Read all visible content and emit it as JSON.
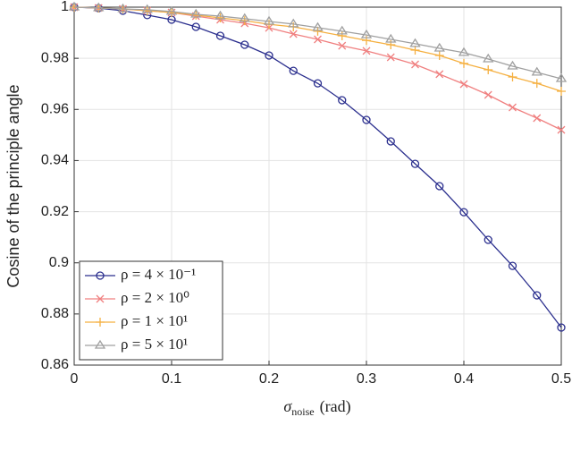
{
  "chart_data": {
    "type": "line",
    "x_label": {
      "symbol": "σ",
      "subscript": "noise",
      "unit": "(rad)"
    },
    "y_label": "Cosine of the principle angle",
    "x": [
      0,
      0.025,
      0.05,
      0.075,
      0.1,
      0.125,
      0.15,
      0.175,
      0.2,
      0.225,
      0.25,
      0.275,
      0.3,
      0.325,
      0.35,
      0.375,
      0.4,
      0.425,
      0.45,
      0.475,
      0.5
    ],
    "series": [
      {
        "name": "ρ = 4 × 10⁻¹",
        "color": "#2b2f8e",
        "marker": "circle",
        "values": [
          1,
          0.9996,
          0.9986,
          0.9969,
          0.9951,
          0.9923,
          0.9888,
          0.9853,
          0.9811,
          0.9751,
          0.9702,
          0.9636,
          0.9559,
          0.9475,
          0.9387,
          0.93,
          0.9198,
          0.909,
          0.8988,
          0.8873,
          0.8747
        ]
      },
      {
        "name": "ρ = 2 × 10⁰",
        "color": "#f08080",
        "marker": "x",
        "values": [
          1,
          0.9997,
          0.9993,
          0.9986,
          0.9979,
          0.9965,
          0.9951,
          0.9937,
          0.9919,
          0.9895,
          0.9874,
          0.9849,
          0.9829,
          0.9804,
          0.9776,
          0.9738,
          0.9699,
          0.9657,
          0.9608,
          0.9566,
          0.952
        ]
      },
      {
        "name": "ρ = 1 × 10¹",
        "color": "#f5b041",
        "marker": "plus",
        "values": [
          1,
          0.9997,
          0.9993,
          0.9986,
          0.9979,
          0.9969,
          0.9958,
          0.9947,
          0.9933,
          0.9923,
          0.9906,
          0.9888,
          0.987,
          0.9853,
          0.9832,
          0.9811,
          0.978,
          0.9755,
          0.9727,
          0.9702,
          0.9671
        ]
      },
      {
        "name": "ρ = 5 × 10¹",
        "color": "#a0a0a0",
        "marker": "triangle",
        "values": [
          1,
          0.9997,
          0.9993,
          0.999,
          0.9983,
          0.9972,
          0.9965,
          0.9955,
          0.9944,
          0.9934,
          0.992,
          0.9906,
          0.9891,
          0.9874,
          0.9857,
          0.9839,
          0.9822,
          0.9797,
          0.9769,
          0.9745,
          0.972
        ]
      }
    ],
    "xlim": [
      0,
      0.5
    ],
    "xticks": [
      0,
      0.1,
      0.2,
      0.3,
      0.4,
      0.5
    ],
    "ylim": [
      0.86,
      1
    ],
    "yticks": [
      0.86,
      0.88,
      0.9,
      0.92,
      0.94,
      0.96,
      0.98,
      1
    ],
    "grid": true,
    "legend_position": "lower left"
  }
}
